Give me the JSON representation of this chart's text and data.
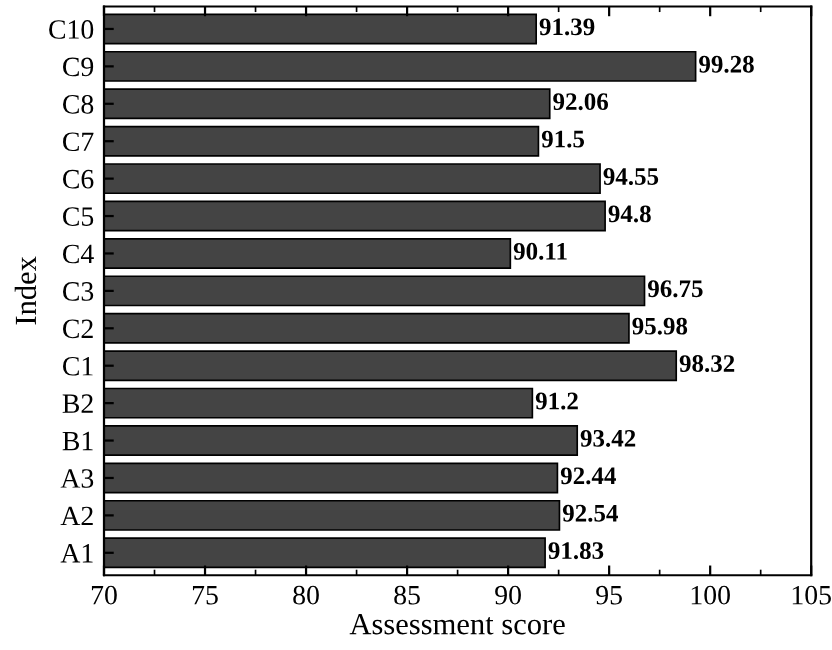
{
  "chart_data": {
    "type": "bar",
    "orientation": "horizontal",
    "xlabel": "Assessment score",
    "ylabel": "Index",
    "categories": [
      "C10",
      "C9",
      "C8",
      "C7",
      "C6",
      "C5",
      "C4",
      "C3",
      "C2",
      "C1",
      "B2",
      "B1",
      "A3",
      "A2",
      "A1"
    ],
    "values": [
      91.39,
      99.28,
      92.06,
      91.5,
      94.55,
      94.8,
      90.11,
      96.75,
      95.98,
      98.32,
      91.2,
      93.42,
      92.44,
      92.54,
      91.83
    ],
    "color": "#444444",
    "data_labels": true,
    "xlim": [
      70,
      105
    ],
    "xticks": [
      70,
      75,
      80,
      85,
      90,
      95,
      100,
      105
    ],
    "grid": false
  }
}
